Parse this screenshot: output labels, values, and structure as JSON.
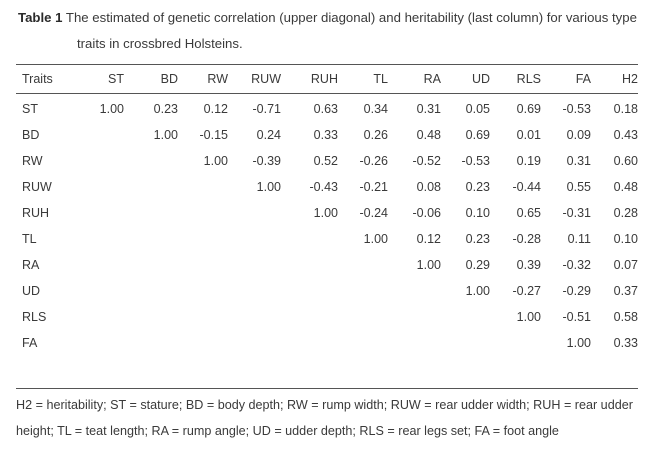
{
  "caption": {
    "label": "Table 1",
    "line1": "The estimated of genetic correlation (upper diagonal) and heritability (last column) for various type",
    "line2": "traits in crossbred Holsteins."
  },
  "table": {
    "columns": [
      "Traits",
      "ST",
      "BD",
      "RW",
      "RUW",
      "RUH",
      "TL",
      "RA",
      "UD",
      "RLS",
      "FA",
      "H2"
    ],
    "rows": [
      {
        "trait": "ST",
        "cells": [
          "1.00",
          "0.23",
          "0.12",
          "-0.71",
          "0.63",
          "0.34",
          "0.31",
          "0.05",
          "0.69",
          "-0.53",
          "0.18"
        ]
      },
      {
        "trait": "BD",
        "cells": [
          "",
          "1.00",
          "-0.15",
          "0.24",
          "0.33",
          "0.26",
          "0.48",
          "0.69",
          "0.01",
          "0.09",
          "0.43"
        ]
      },
      {
        "trait": "RW",
        "cells": [
          "",
          "",
          "1.00",
          "-0.39",
          "0.52",
          "-0.26",
          "-0.52",
          "-0.53",
          "0.19",
          "0.31",
          "0.60"
        ]
      },
      {
        "trait": "RUW",
        "cells": [
          "",
          "",
          "",
          "1.00",
          "-0.43",
          "-0.21",
          "0.08",
          "0.23",
          "-0.44",
          "0.55",
          "0.48"
        ]
      },
      {
        "trait": "RUH",
        "cells": [
          "",
          "",
          "",
          "",
          "1.00",
          "-0.24",
          "-0.06",
          "0.10",
          "0.65",
          "-0.31",
          "0.28"
        ]
      },
      {
        "trait": "TL",
        "cells": [
          "",
          "",
          "",
          "",
          "",
          "1.00",
          "0.12",
          "0.23",
          "-0.28",
          "0.11",
          "0.10"
        ]
      },
      {
        "trait": "RA",
        "cells": [
          "",
          "",
          "",
          "",
          "",
          "",
          "1.00",
          "0.29",
          "0.39",
          "-0.32",
          "0.07"
        ]
      },
      {
        "trait": "UD",
        "cells": [
          "",
          "",
          "",
          "",
          "",
          "",
          "",
          "1.00",
          "-0.27",
          "-0.29",
          "0.37"
        ]
      },
      {
        "trait": "RLS",
        "cells": [
          "",
          "",
          "",
          "",
          "",
          "",
          "",
          "",
          "1.00",
          "-0.51",
          "0.58"
        ]
      },
      {
        "trait": "FA",
        "cells": [
          "",
          "",
          "",
          "",
          "",
          "",
          "",
          "",
          "",
          "1.00",
          "0.33"
        ]
      }
    ]
  },
  "footnote": {
    "line1": "H2 = heritability; ST = stature; BD = body depth; RW = rump width; RUW = rear udder width; RUH = rear udder",
    "line2": "height; TL = teat length; RA = rump angle; UD = udder depth; RLS = rear legs set; FA = foot angle"
  }
}
